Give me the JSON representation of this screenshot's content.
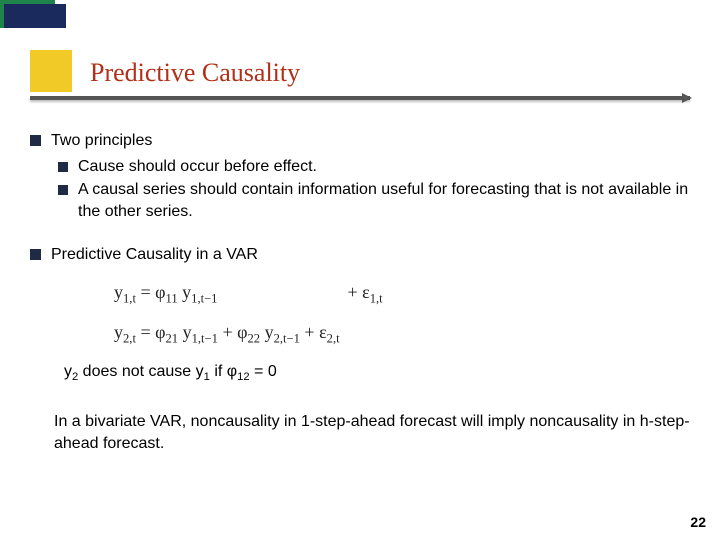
{
  "title": "Predictive Causality",
  "bullets": {
    "principles_heading": "Two principles",
    "principle_1": "Cause should occur before effect.",
    "principle_2": "A causal series should contain information useful for forecasting that is not available in the other series.",
    "var_heading": "Predictive Causality in a VAR"
  },
  "equations": {
    "eq1_lhs": "y",
    "eq1_lhs_sub": "1,t",
    "eq1_eq": " = φ",
    "eq1_phi11_sub": "11",
    "eq1_y1": " y",
    "eq1_y1_sub": "1,t−1",
    "eq1_plus_eps": "+ ε",
    "eq1_eps_sub": "1,t",
    "eq2_lhs": "y",
    "eq2_lhs_sub": "2,t",
    "eq2_eq": " = φ",
    "eq2_phi21_sub": "21",
    "eq2_y1": " y",
    "eq2_y1_sub": "1,t−1",
    "eq2_plus": " + φ",
    "eq2_phi22_sub": "22",
    "eq2_y2": " y",
    "eq2_y2_sub": "2,t−1",
    "eq2_plus_eps": " + ε",
    "eq2_eps_sub": "2,t"
  },
  "note": {
    "pre": "y",
    "sub1": "2",
    "mid1": " does not cause y",
    "sub2": "1",
    "mid2": " if φ",
    "sub3": "12",
    "tail": " = 0"
  },
  "closing": "In a bivariate VAR, noncausality in 1-step-ahead forecast will imply noncausality in h-step-ahead forecast.",
  "page_number": "22",
  "colors": {
    "title_color": "#b03018",
    "bullet_color": "#1f2a44",
    "accent_yellow": "#f1c40f",
    "accent_green": "#1e8449",
    "accent_navy": "#1a2a5c"
  }
}
